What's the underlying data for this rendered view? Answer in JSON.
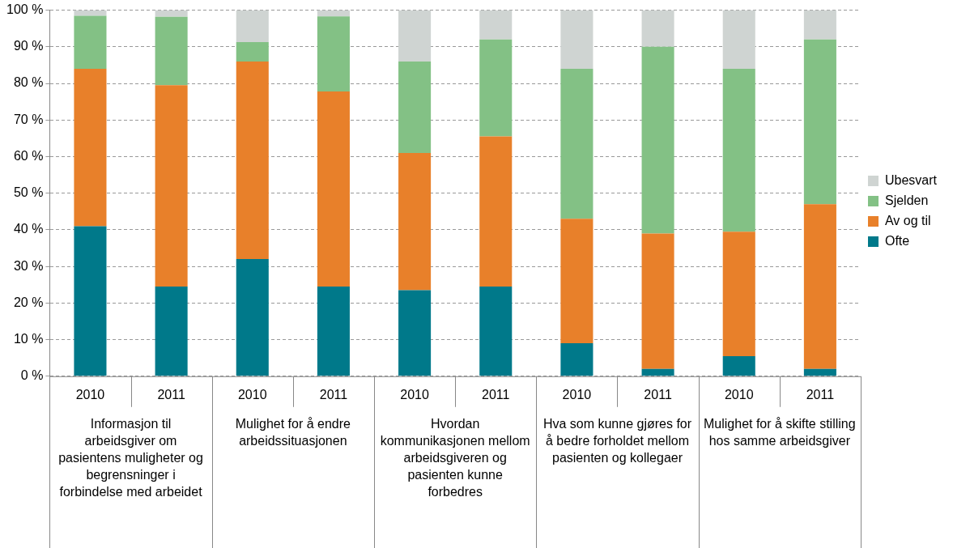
{
  "chart_data": {
    "type": "bar",
    "stacked": true,
    "categories": [
      "2010",
      "2011",
      "2010",
      "2011",
      "2010",
      "2011",
      "2010",
      "2011",
      "2010",
      "2011"
    ],
    "series": [
      {
        "name": "Ofte",
        "color": "#00798a",
        "values": [
          41,
          24.5,
          32,
          24.5,
          23.5,
          24.5,
          9,
          2,
          5.5,
          2
        ]
      },
      {
        "name": "Av og til",
        "color": "#e8802a",
        "values": [
          43,
          55,
          54,
          53.3,
          37.5,
          41,
          34,
          37,
          34,
          45
        ]
      },
      {
        "name": "Sjelden",
        "color": "#83c185",
        "values": [
          14.5,
          18.7,
          5.3,
          20.5,
          25,
          26.5,
          41,
          51,
          44.5,
          45
        ]
      },
      {
        "name": "Ubesvart",
        "color": "#cfd4d2",
        "values": [
          1.5,
          1.8,
          8.7,
          1.7,
          14,
          8,
          16,
          10,
          16,
          8
        ]
      }
    ],
    "ylim": [
      0,
      100
    ],
    "yticks": [
      {
        "value": 0,
        "label": "0 %"
      },
      {
        "value": 10,
        "label": "10 %"
      },
      {
        "value": 20,
        "label": "20 %"
      },
      {
        "value": 30,
        "label": "30 %"
      },
      {
        "value": 40,
        "label": "40 %"
      },
      {
        "value": 50,
        "label": "50 %"
      },
      {
        "value": 60,
        "label": "60 %"
      },
      {
        "value": 70,
        "label": "70 %"
      },
      {
        "value": 80,
        "label": "80 %"
      },
      {
        "value": 90,
        "label": "90 %"
      },
      {
        "value": 100,
        "label": "100 %"
      }
    ],
    "grid": "y",
    "legend": "right",
    "annotations": [
      "Informasjon til arbeidsgiver om pasientens muligheter og begrensninger i forbindelse med arbeidet",
      "Mulighet for å endre arbeidssituasjonen",
      "Hvordan kommunikasjonen mellom arbeidsgiveren og pasienten kunne forbedres",
      "Hva som kunne gjøres for å bedre forholdet mellom pasienten og kollegaer",
      "Mulighet for å skifte stilling hos samme arbeidsgiver"
    ]
  }
}
